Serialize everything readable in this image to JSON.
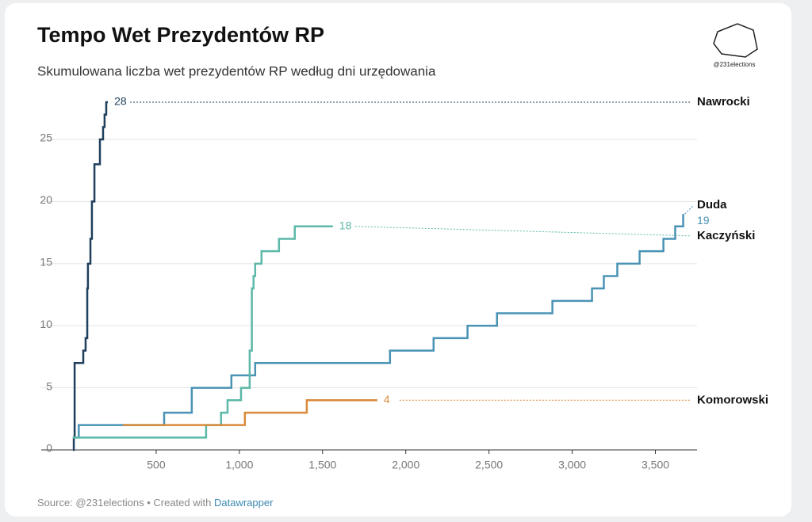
{
  "chart_data": {
    "type": "step-line",
    "title": "Tempo Wet Prezydentów RP",
    "subtitle": "Skumulowana liczba wet prezydentów RP według dni urzędowania",
    "logo": "@231elections",
    "footer": {
      "source": "Source: @231elections • Created with",
      "link": "Datawrapper"
    },
    "xlim": [
      0,
      3750
    ],
    "xticks": [
      500,
      {
        "value": 1000,
        "label": "1,000"
      },
      {
        "value": 1500,
        "label": "1,500"
      },
      {
        "value": 2000,
        "label": "2,000"
      },
      {
        "value": 2500,
        "label": "2,500"
      },
      {
        "value": 3000,
        "label": "3,000"
      },
      {
        "value": 3500,
        "label": "3,500"
      }
    ],
    "ylim": [
      0,
      28
    ],
    "yticks": [
      0,
      5,
      10,
      15,
      20,
      25
    ],
    "grid": true,
    "series": [
      {
        "name": "Nawrocki",
        "color": "#1f3f5c",
        "x": [
          0,
          5,
          10,
          62,
          76,
          86,
          90,
          105,
          114,
          129,
          162,
          181,
          190,
          200,
          210
        ],
        "values": [
          0,
          1,
          7,
          8,
          9,
          13,
          15,
          17,
          20,
          23,
          25,
          26,
          27,
          28,
          28
        ]
      },
      {
        "name": "Duda",
        "color": "#4a93b5",
        "x": [
          15,
          35,
          548,
          714,
          952,
          1095,
          1905,
          2167,
          2371,
          2548,
          2881,
          3119,
          3190,
          3271,
          3405,
          3548,
          3619,
          3667
        ],
        "values": [
          1,
          2,
          3,
          5,
          6,
          7,
          8,
          9,
          10,
          11,
          12,
          13,
          14,
          15,
          16,
          17,
          18,
          19
        ]
      },
      {
        "name": "Kaczyński",
        "color": "#5cb8a8",
        "x": [
          0,
          800,
          890,
          929,
          1010,
          1062,
          1075,
          1085,
          1095,
          1133,
          1238,
          1333,
          1562
        ],
        "values": [
          1,
          2,
          3,
          4,
          5,
          8,
          13,
          14,
          15,
          16,
          17,
          18,
          18
        ]
      },
      {
        "name": "Komorowski",
        "color": "#d98a3a",
        "x": [
          300,
          1033,
          1405,
          1829
        ],
        "values": [
          2,
          3,
          4,
          4
        ]
      }
    ]
  }
}
